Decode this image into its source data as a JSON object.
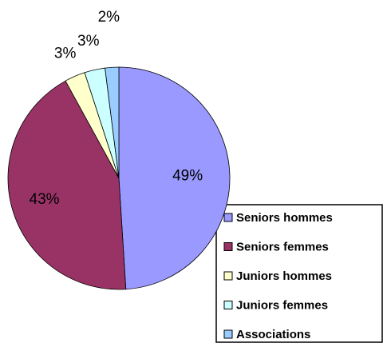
{
  "chart_data": {
    "type": "pie",
    "categories": [
      "Seniors hommes",
      "Seniors femmes",
      "Juniors hommes",
      "Juniors femmes",
      "Associations"
    ],
    "values": [
      49,
      43,
      3,
      3,
      2
    ],
    "value_labels": [
      "49%",
      "43%",
      "3%",
      "3%",
      "2%"
    ],
    "colors": [
      "#9999FF",
      "#993366",
      "#FFFFCC",
      "#CCFFFF",
      "#99CCFF"
    ]
  }
}
